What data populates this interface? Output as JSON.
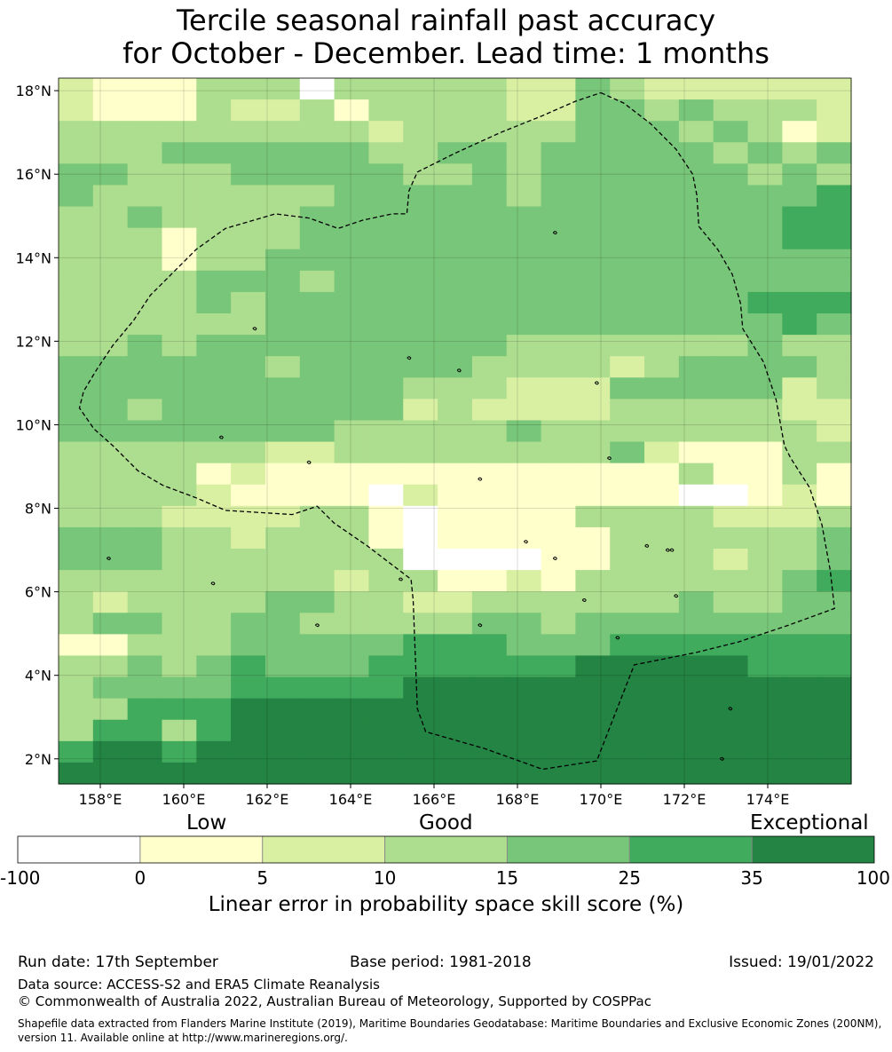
{
  "title": {
    "line1": "Tercile seasonal rainfall past accuracy",
    "line2": "for October - December. Lead time: 1 months"
  },
  "map": {
    "lon_range": [
      157.0,
      176.0
    ],
    "lat_range": [
      1.4,
      18.3
    ],
    "grid_step_deg": 0.83,
    "x_ticks": [
      {
        "lon": 158,
        "label": "158°E"
      },
      {
        "lon": 160,
        "label": "160°E"
      },
      {
        "lon": 162,
        "label": "162°E"
      },
      {
        "lon": 164,
        "label": "164°E"
      },
      {
        "lon": 166,
        "label": "166°E"
      },
      {
        "lon": 168,
        "label": "168°E"
      },
      {
        "lon": 170,
        "label": "170°E"
      },
      {
        "lon": 172,
        "label": "172°E"
      },
      {
        "lon": 174,
        "label": "174°E"
      }
    ],
    "y_ticks": [
      {
        "lat": 18,
        "label": "18°N"
      },
      {
        "lat": 16,
        "label": "16°N"
      },
      {
        "lat": 14,
        "label": "14°N"
      },
      {
        "lat": 12,
        "label": "12°N"
      },
      {
        "lat": 10,
        "label": "10°N"
      },
      {
        "lat": 8,
        "label": "8°N"
      },
      {
        "lat": 6,
        "label": "6°N"
      },
      {
        "lat": 4,
        "label": "4°N"
      },
      {
        "lat": 2,
        "label": "2°N"
      }
    ],
    "skill_grid_legend": "0:-100..0, 1:0..5, 2:5..10, 3:10..15, 4:15..25, 5:25..35, 6:35..100; rows north to south",
    "skill_grid": [
      "21113330333332243222222",
      "21113223133332244343332",
      "33333333323333344434312",
      "33344444433443444443434",
      "44333444443343444444343",
      "43333333444443444444445",
      "33433334444444444444455",
      "33313334444444444444455",
      "33313344444444444444444",
      "33334443444444444444444",
      "33334344444444444444555",
      "33333344444444444444454",
      "33434444444443333333433",
      "44444434444433332344443",
      "44444444443332224444423",
      "44344444442322223333322",
      "44444444333334333333332",
      "33333322333333334211133",
      "33331211111111111131131",
      "33332111102111111100121",
      "33322223310111133332223",
      "44433233310111113333334",
      "44433333330000113332334",
      "33333333233112133333345",
      "32333344332233333343344",
      "34433443333344344444444",
      "11333444445554445555555",
      "33434544455555566666555",
      "34444555556666666666666",
      "33555666666666666666666",
      "35535666666666666666666",
      "56656666666666666666666",
      "66666666666666666666666"
    ],
    "eez_boundary": [
      [
        170.0,
        17.95
      ],
      [
        170.55,
        17.7
      ],
      [
        171.2,
        17.2
      ],
      [
        171.8,
        16.6
      ],
      [
        172.2,
        16.0
      ],
      [
        172.3,
        15.5
      ],
      [
        172.35,
        14.75
      ],
      [
        172.8,
        14.2
      ],
      [
        173.15,
        13.6
      ],
      [
        173.35,
        12.9
      ],
      [
        173.4,
        12.3
      ],
      [
        173.9,
        11.5
      ],
      [
        174.2,
        10.6
      ],
      [
        174.4,
        9.5
      ],
      [
        174.55,
        9.2
      ],
      [
        175.0,
        8.5
      ],
      [
        175.3,
        7.6
      ],
      [
        175.5,
        6.5
      ],
      [
        175.6,
        5.6
      ],
      [
        174.5,
        5.2
      ],
      [
        173.3,
        4.8
      ],
      [
        172.3,
        4.55
      ],
      [
        170.8,
        4.25
      ],
      [
        169.9,
        1.95
      ],
      [
        168.6,
        1.75
      ],
      [
        167.2,
        2.25
      ],
      [
        165.8,
        2.65
      ],
      [
        165.6,
        3.2
      ],
      [
        165.5,
        5.8
      ],
      [
        165.45,
        6.3
      ],
      [
        164.4,
        7.1
      ],
      [
        163.6,
        7.65
      ],
      [
        163.2,
        8.05
      ],
      [
        162.6,
        7.85
      ],
      [
        161.0,
        7.95
      ],
      [
        160.3,
        8.25
      ],
      [
        159.5,
        8.55
      ],
      [
        158.9,
        8.9
      ],
      [
        158.3,
        9.5
      ],
      [
        157.85,
        9.9
      ],
      [
        157.5,
        10.4
      ],
      [
        157.6,
        10.8
      ],
      [
        157.9,
        11.3
      ],
      [
        158.3,
        11.9
      ],
      [
        158.8,
        12.5
      ],
      [
        159.2,
        13.1
      ],
      [
        159.7,
        13.6
      ],
      [
        160.3,
        14.2
      ],
      [
        161.0,
        14.7
      ],
      [
        162.2,
        15.05
      ],
      [
        163.0,
        14.95
      ],
      [
        163.7,
        14.7
      ],
      [
        164.3,
        14.9
      ],
      [
        165.0,
        15.05
      ],
      [
        165.35,
        15.05
      ],
      [
        165.4,
        15.6
      ],
      [
        165.6,
        16.05
      ],
      [
        166.5,
        16.5
      ],
      [
        167.6,
        17.0
      ],
      [
        168.6,
        17.4
      ],
      [
        169.4,
        17.75
      ],
      [
        170.0,
        17.95
      ]
    ],
    "islands": [
      [
        171.7,
        7.0
      ],
      [
        171.1,
        7.1
      ],
      [
        171.6,
        7.0
      ],
      [
        165.2,
        6.3
      ],
      [
        163.2,
        5.2
      ],
      [
        158.2,
        6.8
      ],
      [
        161.7,
        12.3
      ],
      [
        165.4,
        11.6
      ],
      [
        167.1,
        8.7
      ],
      [
        168.2,
        7.2
      ],
      [
        168.9,
        6.8
      ],
      [
        169.6,
        5.8
      ],
      [
        170.4,
        4.9
      ],
      [
        171.8,
        5.9
      ],
      [
        173.1,
        3.2
      ],
      [
        172.9,
        2.0
      ],
      [
        167.1,
        5.2
      ],
      [
        170.2,
        9.2
      ],
      [
        166.6,
        11.3
      ],
      [
        169.9,
        11.0
      ],
      [
        168.9,
        14.6
      ],
      [
        160.9,
        9.7
      ],
      [
        160.7,
        6.2
      ],
      [
        163.0,
        9.1
      ]
    ]
  },
  "colorbar": {
    "category_low": "Low",
    "category_good": "Good",
    "category_exceptional": "Exceptional",
    "ticks": [
      "-100",
      "0",
      "5",
      "10",
      "15",
      "25",
      "35",
      "100"
    ],
    "colors": [
      "#ffffff",
      "#ffffcc",
      "#d9f0a3",
      "#addd8e",
      "#78c679",
      "#41ab5d",
      "#238443"
    ],
    "label": "Linear error in probability space skill score (%)"
  },
  "footer": {
    "run_date": "Run date: 17th September",
    "base_period": "Base period: 1981-2018",
    "issued": "Issued: 19/01/2022",
    "data_source": "Data source: ACCESS-S2 and ERA5 Climate Reanalysis",
    "copyright": "© Commonwealth of Australia 2022, Australian Bureau of Meteorology, Supported by COSPPac",
    "shapefile_line1": "Shapefile data extracted from Flanders Marine Institute (2019), Maritime Boundaries Geodatabase: Maritime Boundaries and Exclusive Economic Zones (200NM),",
    "shapefile_line2": "version 11. Available online at http://www.marineregions.org/."
  }
}
